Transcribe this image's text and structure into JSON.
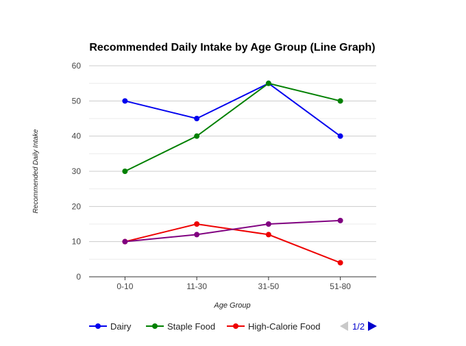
{
  "chart_data": {
    "type": "line",
    "title": "Recommended Daily Intake by Age Group (Line Graph)",
    "xlabel": "Age Group",
    "ylabel": "Recommended Daily Intake",
    "categories": [
      "0-10",
      "11-30",
      "31-50",
      "51-80"
    ],
    "ylim": [
      0,
      60
    ],
    "yticks": [
      0,
      10,
      20,
      30,
      40,
      50,
      60
    ],
    "grid": true,
    "legend_position": "bottom",
    "series": [
      {
        "name": "Dairy",
        "color": "#0000ee",
        "values": [
          50,
          45,
          55,
          40
        ]
      },
      {
        "name": "Staple Food",
        "color": "#008000",
        "values": [
          30,
          40,
          55,
          50
        ]
      },
      {
        "name": "High-Calorie Food",
        "color": "#ee0000",
        "values": [
          10,
          15,
          12,
          4
        ]
      },
      {
        "color": "#800080",
        "values": [
          10,
          12,
          15,
          16
        ]
      }
    ],
    "legend_visible_series": 3,
    "legend_pager": "1/2"
  }
}
